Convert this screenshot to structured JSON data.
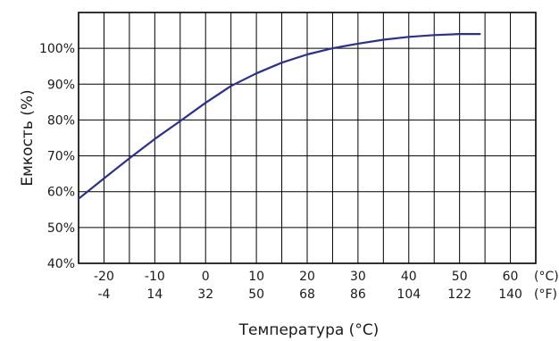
{
  "chart_data": {
    "type": "line",
    "title": "",
    "ylabel": "Емкость (%)",
    "xlabel": "Температура (°C)",
    "xlim": [
      -25,
      65
    ],
    "ylim": [
      40,
      110
    ],
    "grid": true,
    "x_ticks_c": [
      "-20",
      "-10",
      "0",
      "10",
      "20",
      "30",
      "40",
      "50",
      "60"
    ],
    "x_ticks_f": [
      "-4",
      "14",
      "32",
      "50",
      "68",
      "86",
      "104",
      "122",
      "140"
    ],
    "x_unit_c": "(°C)",
    "x_unit_f": "(°F)",
    "y_ticks": [
      "40%",
      "50%",
      "60%",
      "70%",
      "80%",
      "90%",
      "100%"
    ],
    "series": [
      {
        "color": "#2b2f8f",
        "x": [
          -25,
          -20,
          -15,
          -10,
          -5,
          0,
          5,
          10,
          15,
          20,
          25,
          30,
          35,
          40,
          45,
          50,
          54
        ],
        "y": [
          58,
          63.7,
          69.3,
          74.7,
          79.7,
          84.8,
          89.5,
          93,
          96,
          98.3,
          100,
          101.3,
          102.4,
          103.2,
          103.7,
          104,
          104
        ]
      }
    ]
  }
}
